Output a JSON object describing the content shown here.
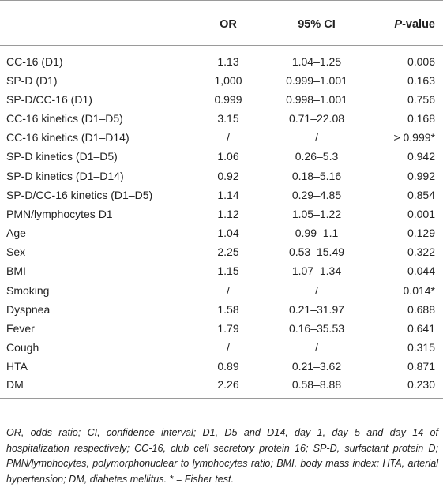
{
  "table": {
    "headers": {
      "variable": "",
      "or": "OR",
      "ci": "95% CI",
      "p_prefix": "P",
      "p_suffix": "-value"
    },
    "rows": [
      {
        "variable": "CC-16 (D1)",
        "or": "1.13",
        "ci": "1.04–1.25",
        "p": "0.006"
      },
      {
        "variable": "SP-D (D1)",
        "or": "1,000",
        "ci": "0.999–1.001",
        "p": "0.163"
      },
      {
        "variable": "SP-D/CC-16 (D1)",
        "or": "0.999",
        "ci": "0.998–1.001",
        "p": "0.756"
      },
      {
        "variable": "CC-16 kinetics (D1–D5)",
        "or": "3.15",
        "ci": "0.71–22.08",
        "p": "0.168"
      },
      {
        "variable": "CC-16 kinetics (D1–D14)",
        "or": "/",
        "ci": "/",
        "p": "> 0.999*"
      },
      {
        "variable": "SP-D kinetics (D1–D5)",
        "or": "1.06",
        "ci": "0.26–5.3",
        "p": "0.942"
      },
      {
        "variable": "SP-D kinetics (D1–D14)",
        "or": "0.92",
        "ci": "0.18–5.16",
        "p": "0.992"
      },
      {
        "variable": "SP-D/CC-16 kinetics (D1–D5)",
        "or": "1.14",
        "ci": "0.29–4.85",
        "p": "0.854"
      },
      {
        "variable": "PMN/lymphocytes D1",
        "or": "1.12",
        "ci": "1.05–1.22",
        "p": "0.001"
      },
      {
        "variable": "Age",
        "or": "1.04",
        "ci": "0.99–1.1",
        "p": "0.129"
      },
      {
        "variable": "Sex",
        "or": "2.25",
        "ci": "0.53–15.49",
        "p": "0.322"
      },
      {
        "variable": "BMI",
        "or": "1.15",
        "ci": "1.07–1.34",
        "p": "0.044"
      },
      {
        "variable": "Smoking",
        "or": "/",
        "ci": "/",
        "p": "0.014*"
      },
      {
        "variable": "Dyspnea",
        "or": "1.58",
        "ci": "0.21–31.97",
        "p": "0.688"
      },
      {
        "variable": "Fever",
        "or": "1.79",
        "ci": "0.16–35.53",
        "p": "0.641"
      },
      {
        "variable": "Cough",
        "or": "/",
        "ci": "/",
        "p": "0.315"
      },
      {
        "variable": "HTA",
        "or": "0.89",
        "ci": "0.21–3.62",
        "p": "0.871"
      },
      {
        "variable": "DM",
        "or": "2.26",
        "ci": "0.58–8.88",
        "p": "0.230"
      }
    ]
  },
  "footnote": "OR, odds ratio; CI, confidence interval; D1, D5 and D14, day 1, day 5 and day 14 of hospitalization respectively; CC-16, club cell secretory protein 16; SP-D, surfactant protein D; PMN/lymphocytes, polymorphonuclear to lymphocytes ratio; BMI, body mass index; HTA, arterial hypertension; DM, diabetes mellitus. * = Fisher test."
}
